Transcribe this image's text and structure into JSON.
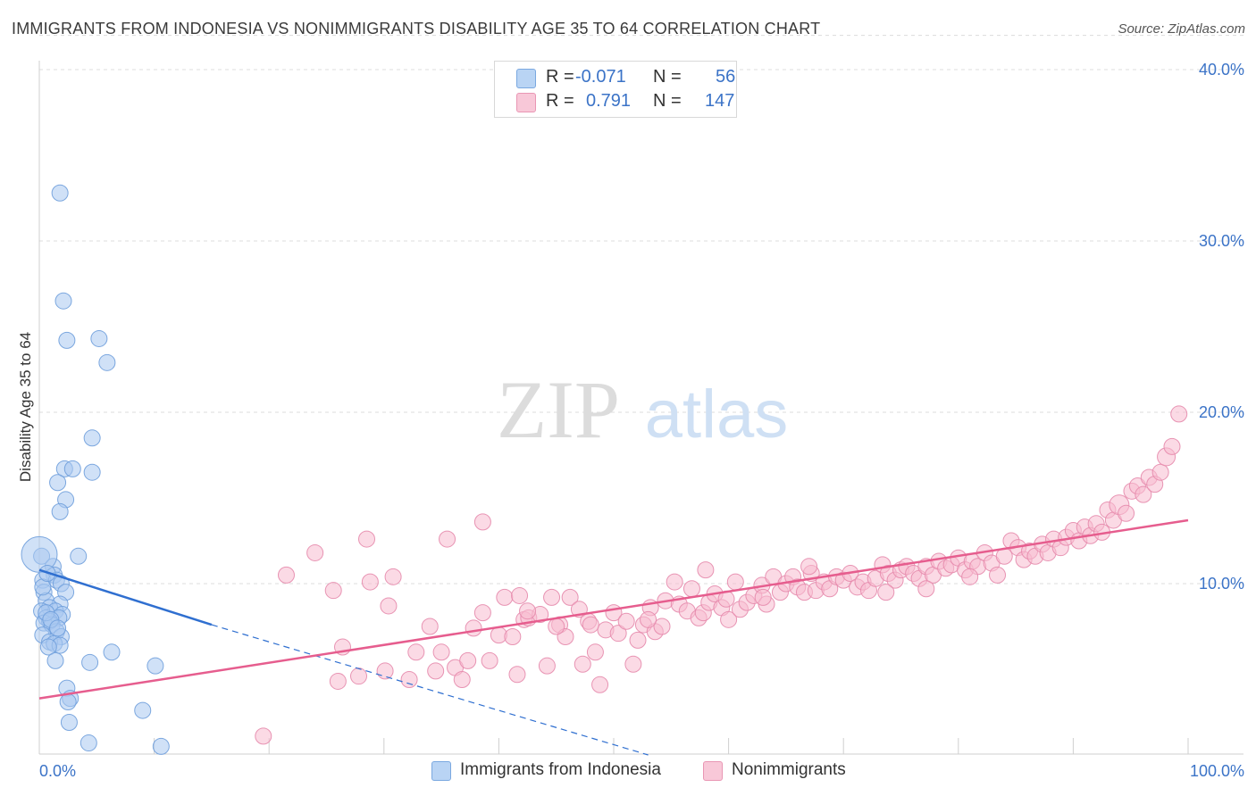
{
  "title": "IMMIGRANTS FROM INDONESIA VS NONIMMIGRANTS DISABILITY AGE 35 TO 64 CORRELATION CHART",
  "source": "Source: ZipAtlas.com",
  "watermark": {
    "zip": "ZIP",
    "atlas": "atlas"
  },
  "legend": {
    "r_label": "R =",
    "n_label": "N =",
    "rows": [
      {
        "r": "-0.071",
        "n": "56",
        "color": "#b9d4f4",
        "border": "#7aa8e0"
      },
      {
        "r": "0.791",
        "n": "147",
        "color": "#f8c8d8",
        "border": "#e996b4"
      }
    ]
  },
  "bottom_legend": [
    {
      "label": "Immigrants from Indonesia",
      "color": "#b9d4f4",
      "border": "#7aa8e0"
    },
    {
      "label": "Nonimmigrants",
      "color": "#f8c8d8",
      "border": "#e996b4"
    }
  ],
  "chart_data": {
    "type": "scatter",
    "title": "IMMIGRANTS FROM INDONESIA VS NONIMMIGRANTS DISABILITY AGE 35 TO 64 CORRELATION CHART",
    "xlabel": "",
    "ylabel": "Disability Age 35 to 64",
    "xlim": [
      0,
      100
    ],
    "ylim": [
      0,
      42
    ],
    "x_tick_labels": [
      {
        "v": 0,
        "label": "0.0%"
      },
      {
        "v": 100,
        "label": "100.0%"
      }
    ],
    "y_tick_labels": [
      {
        "v": 10,
        "label": "10.0%"
      },
      {
        "v": 20,
        "label": "20.0%"
      },
      {
        "v": 30,
        "label": "30.0%"
      },
      {
        "v": 40,
        "label": "40.0%"
      }
    ],
    "x_minor_ticks": [
      0,
      10,
      20,
      30,
      40,
      50,
      60,
      70,
      80,
      90,
      100
    ],
    "grid": true,
    "series": [
      {
        "name": "Immigrants from Indonesia",
        "color": "#a9c8f0",
        "stroke": "#6f9fdc",
        "trend": {
          "x0": 0,
          "y0": 10.8,
          "x1": 15,
          "y1": 7.6,
          "dash_to_x": 53,
          "dash_to_y": 0,
          "color": "#2f6fd0"
        },
        "points": [
          [
            1.8,
            32.8
          ],
          [
            2.1,
            26.5
          ],
          [
            2.4,
            24.2
          ],
          [
            5.2,
            24.3
          ],
          [
            5.9,
            22.9
          ],
          [
            4.6,
            18.5
          ],
          [
            2.2,
            16.7
          ],
          [
            2.9,
            16.7
          ],
          [
            4.6,
            16.5
          ],
          [
            1.6,
            15.9
          ],
          [
            2.3,
            14.9
          ],
          [
            1.8,
            14.2
          ],
          [
            0.2,
            11.6
          ],
          [
            3.4,
            11.6
          ],
          [
            1.2,
            11.0
          ],
          [
            1.3,
            10.5
          ],
          [
            0.3,
            10.2
          ],
          [
            1.5,
            10.2
          ],
          [
            1.9,
            10.0
          ],
          [
            0.4,
            9.5
          ],
          [
            2.3,
            9.5
          ],
          [
            0.6,
            9.0
          ],
          [
            1.8,
            8.8
          ],
          [
            0.9,
            8.6
          ],
          [
            1.4,
            8.4
          ],
          [
            0.2,
            8.4
          ],
          [
            2.0,
            8.2
          ],
          [
            0.6,
            8.0
          ],
          [
            1.7,
            8.0
          ],
          [
            0.9,
            7.8
          ],
          [
            0.4,
            7.7
          ],
          [
            1.1,
            7.6
          ],
          [
            1.5,
            7.2
          ],
          [
            0.3,
            7.0
          ],
          [
            1.9,
            6.9
          ],
          [
            0.9,
            6.6
          ],
          [
            1.3,
            6.5
          ],
          [
            1.8,
            6.4
          ],
          [
            0.8,
            6.3
          ],
          [
            6.3,
            6.0
          ],
          [
            1.4,
            5.5
          ],
          [
            4.4,
            5.4
          ],
          [
            10.1,
            5.2
          ],
          [
            2.4,
            3.9
          ],
          [
            2.7,
            3.3
          ],
          [
            2.5,
            3.1
          ],
          [
            9.0,
            2.6
          ],
          [
            2.6,
            1.9
          ],
          [
            4.3,
            0.7
          ],
          [
            10.6,
            0.5
          ],
          [
            0.0,
            11.7
          ],
          [
            0.6,
            8.3
          ],
          [
            1.0,
            7.9
          ],
          [
            0.3,
            9.8
          ],
          [
            1.6,
            7.4
          ],
          [
            0.7,
            10.6
          ]
        ]
      },
      {
        "name": "Nonimmigrants",
        "color": "#f8bcd0",
        "stroke": "#e68aac",
        "trend": {
          "x0": 0,
          "y0": 3.3,
          "x1": 100,
          "y1": 13.7,
          "color": "#e65d8e"
        },
        "points": [
          [
            19.5,
            1.1
          ],
          [
            21.5,
            10.5
          ],
          [
            24.0,
            11.8
          ],
          [
            25.6,
            9.6
          ],
          [
            26.0,
            4.3
          ],
          [
            26.4,
            6.3
          ],
          [
            27.8,
            4.6
          ],
          [
            28.5,
            12.6
          ],
          [
            28.8,
            10.1
          ],
          [
            30.1,
            4.9
          ],
          [
            30.4,
            8.7
          ],
          [
            30.8,
            10.4
          ],
          [
            32.2,
            4.4
          ],
          [
            32.8,
            6.0
          ],
          [
            34.0,
            7.5
          ],
          [
            34.5,
            4.9
          ],
          [
            35.0,
            6.0
          ],
          [
            35.5,
            12.6
          ],
          [
            36.2,
            5.1
          ],
          [
            36.8,
            4.4
          ],
          [
            37.3,
            5.5
          ],
          [
            37.8,
            7.4
          ],
          [
            38.6,
            13.6
          ],
          [
            38.6,
            8.3
          ],
          [
            39.2,
            5.5
          ],
          [
            40.0,
            7.0
          ],
          [
            40.5,
            9.2
          ],
          [
            41.2,
            6.9
          ],
          [
            41.6,
            4.7
          ],
          [
            41.8,
            9.3
          ],
          [
            42.2,
            7.9
          ],
          [
            42.6,
            8.0
          ],
          [
            43.6,
            8.2
          ],
          [
            44.2,
            5.2
          ],
          [
            44.6,
            9.2
          ],
          [
            45.3,
            7.6
          ],
          [
            45.8,
            6.9
          ],
          [
            46.2,
            9.2
          ],
          [
            47.0,
            8.5
          ],
          [
            47.3,
            5.3
          ],
          [
            47.8,
            7.8
          ],
          [
            48.4,
            6.0
          ],
          [
            48.8,
            4.1
          ],
          [
            49.3,
            7.3
          ],
          [
            50.0,
            8.3
          ],
          [
            50.4,
            7.1
          ],
          [
            51.1,
            7.8
          ],
          [
            51.7,
            5.3
          ],
          [
            52.1,
            6.7
          ],
          [
            52.6,
            7.6
          ],
          [
            53.2,
            8.6
          ],
          [
            53.6,
            7.2
          ],
          [
            54.2,
            7.5
          ],
          [
            54.5,
            9.0
          ],
          [
            55.3,
            10.1
          ],
          [
            55.7,
            8.8
          ],
          [
            56.4,
            8.4
          ],
          [
            56.8,
            9.7
          ],
          [
            57.4,
            8.0
          ],
          [
            57.8,
            8.3
          ],
          [
            58.3,
            8.9
          ],
          [
            58.8,
            9.4
          ],
          [
            59.4,
            8.6
          ],
          [
            60.0,
            7.9
          ],
          [
            60.6,
            10.1
          ],
          [
            61.0,
            8.5
          ],
          [
            61.6,
            8.9
          ],
          [
            62.2,
            9.3
          ],
          [
            62.9,
            9.9
          ],
          [
            63.3,
            8.8
          ],
          [
            63.9,
            10.4
          ],
          [
            64.5,
            9.5
          ],
          [
            65.0,
            10.0
          ],
          [
            65.6,
            10.4
          ],
          [
            66.0,
            9.8
          ],
          [
            66.6,
            9.5
          ],
          [
            67.2,
            10.6
          ],
          [
            67.6,
            9.6
          ],
          [
            68.3,
            10.1
          ],
          [
            68.8,
            9.7
          ],
          [
            69.4,
            10.4
          ],
          [
            70.0,
            10.2
          ],
          [
            70.6,
            10.6
          ],
          [
            71.2,
            9.8
          ],
          [
            71.7,
            10.1
          ],
          [
            72.2,
            9.6
          ],
          [
            72.8,
            10.3
          ],
          [
            73.4,
            11.1
          ],
          [
            73.9,
            10.6
          ],
          [
            74.5,
            10.2
          ],
          [
            75.0,
            10.8
          ],
          [
            75.5,
            11.0
          ],
          [
            76.1,
            10.6
          ],
          [
            76.6,
            10.3
          ],
          [
            77.2,
            11.0
          ],
          [
            77.8,
            10.5
          ],
          [
            78.3,
            11.3
          ],
          [
            78.9,
            10.9
          ],
          [
            79.4,
            11.1
          ],
          [
            80.0,
            11.5
          ],
          [
            80.6,
            10.8
          ],
          [
            81.2,
            11.3
          ],
          [
            81.7,
            11.0
          ],
          [
            82.3,
            11.8
          ],
          [
            82.9,
            11.2
          ],
          [
            83.4,
            10.5
          ],
          [
            84.0,
            11.6
          ],
          [
            84.6,
            12.5
          ],
          [
            85.2,
            12.1
          ],
          [
            85.7,
            11.4
          ],
          [
            86.2,
            11.9
          ],
          [
            86.7,
            11.6
          ],
          [
            87.3,
            12.3
          ],
          [
            87.8,
            11.8
          ],
          [
            88.3,
            12.6
          ],
          [
            88.9,
            12.1
          ],
          [
            89.4,
            12.7
          ],
          [
            90.0,
            13.1
          ],
          [
            90.5,
            12.5
          ],
          [
            91.0,
            13.3
          ],
          [
            91.5,
            12.8
          ],
          [
            92.0,
            13.5
          ],
          [
            92.5,
            13.0
          ],
          [
            93.0,
            14.3
          ],
          [
            93.5,
            13.7
          ],
          [
            94.0,
            14.6
          ],
          [
            94.6,
            14.1
          ],
          [
            95.1,
            15.4
          ],
          [
            95.6,
            15.7
          ],
          [
            96.1,
            15.2
          ],
          [
            96.6,
            16.2
          ],
          [
            97.1,
            15.8
          ],
          [
            97.6,
            16.5
          ],
          [
            98.1,
            17.4
          ],
          [
            98.6,
            18.0
          ],
          [
            99.2,
            19.9
          ],
          [
            73.7,
            9.5
          ],
          [
            77.2,
            9.7
          ],
          [
            63.0,
            9.2
          ],
          [
            58.0,
            10.8
          ],
          [
            45.0,
            7.5
          ],
          [
            53.0,
            7.9
          ],
          [
            67.0,
            11.0
          ],
          [
            81.0,
            10.4
          ],
          [
            59.8,
            9.1
          ],
          [
            42.5,
            8.4
          ],
          [
            48.0,
            7.6
          ]
        ]
      }
    ]
  }
}
